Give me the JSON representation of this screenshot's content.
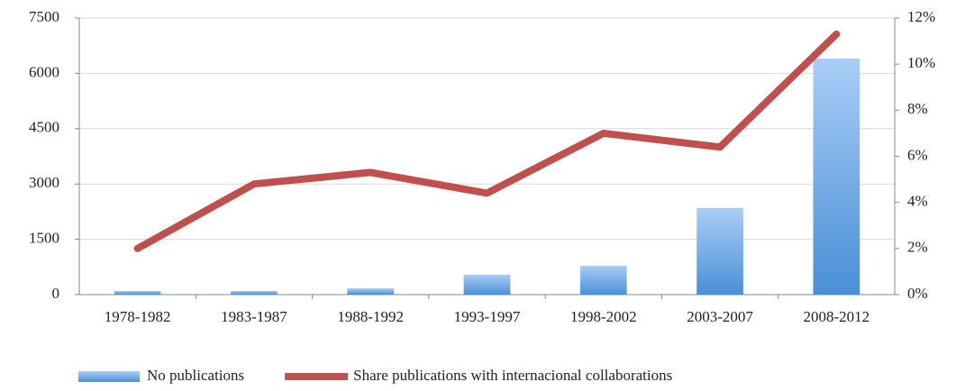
{
  "chart_data": {
    "type": "combo",
    "categories": [
      "1978-1982",
      "1983-1987",
      "1988-1992",
      "1993-1997",
      "1998-2002",
      "2003-2007",
      "2008-2012"
    ],
    "series": [
      {
        "name": "No publications",
        "type": "bar",
        "color": "#4a8fd6",
        "values": [
          100,
          100,
          170,
          540,
          780,
          2350,
          6400
        ]
      },
      {
        "name": "Share publications with internacional collaborations",
        "type": "line",
        "axis": "y2",
        "color": "#c0504d",
        "values": [
          2.0,
          4.8,
          5.3,
          4.4,
          7.0,
          6.4,
          11.3
        ]
      }
    ],
    "ylim": [
      0,
      7500
    ],
    "yticks": [
      0,
      1500,
      3000,
      4500,
      6000,
      7500
    ],
    "y2lim": [
      0,
      12
    ],
    "y2ticks": [
      {
        "value": 0,
        "label": "0%"
      },
      {
        "value": 2,
        "label": "2%"
      },
      {
        "value": 4,
        "label": "4%"
      },
      {
        "value": 6,
        "label": "6%"
      },
      {
        "value": 8,
        "label": "8%"
      },
      {
        "value": 10,
        "label": "10%"
      },
      {
        "value": 12,
        "label": "12%"
      }
    ],
    "grid": true,
    "legend": "bottom"
  }
}
